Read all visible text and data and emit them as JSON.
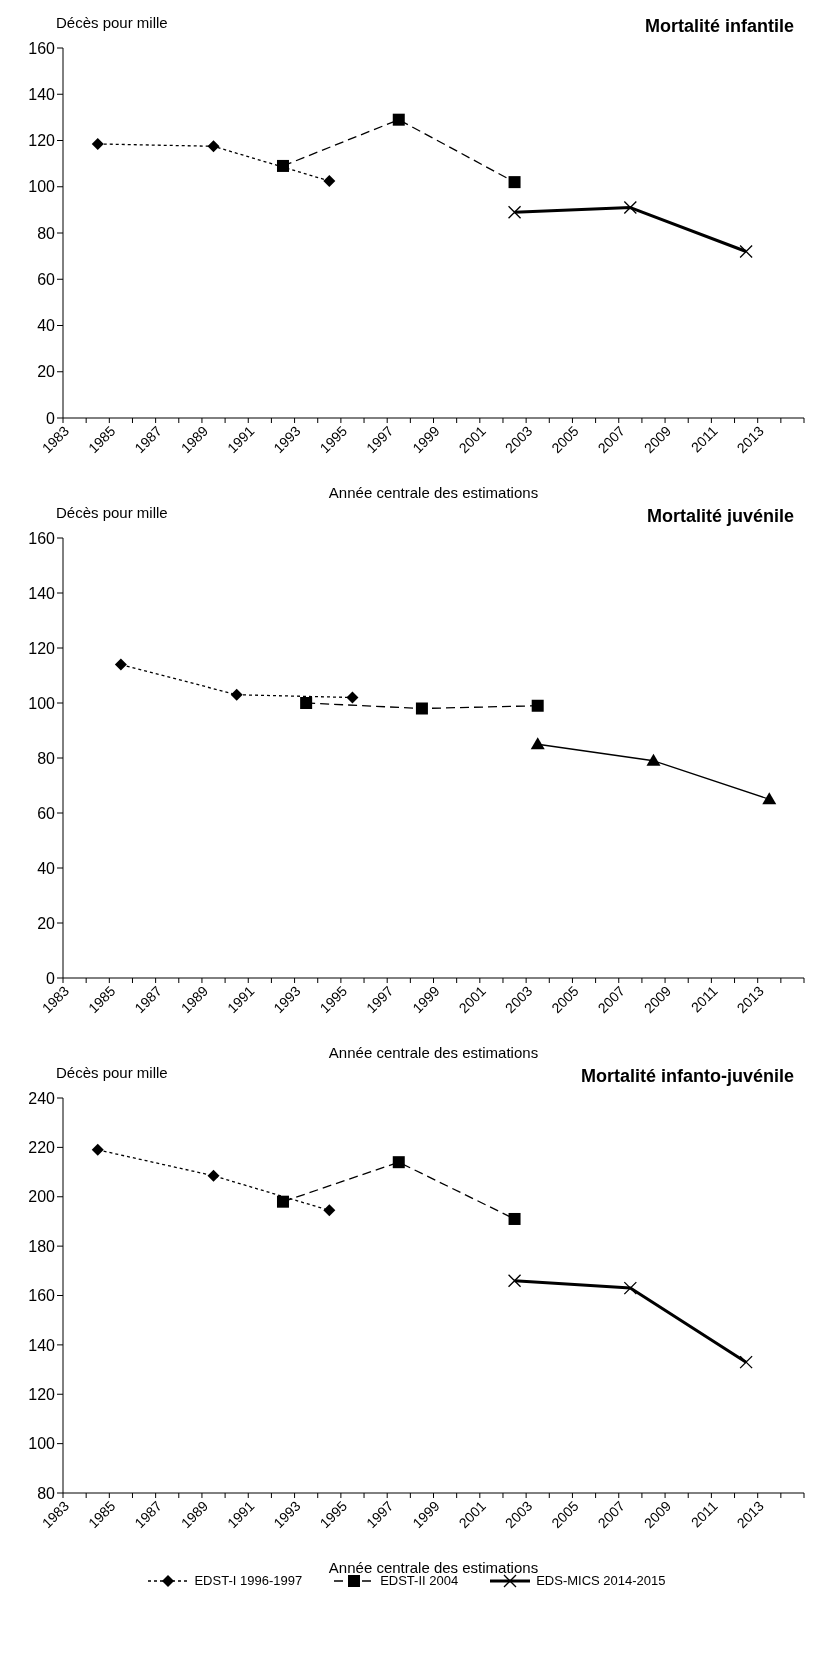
{
  "chart_data": [
    {
      "type": "line",
      "title": "Mortalité infantile",
      "ylabel": "Décès pour mille",
      "xlabel": "Année centrale des estimations",
      "xlim": [
        1983,
        2015
      ],
      "xticks": [
        1983,
        {
          "value": 1984,
          "label": null
        },
        1985,
        {
          "value": 1986,
          "label": null
        },
        1987,
        {
          "value": 1988,
          "label": null
        },
        1989,
        {
          "value": 1990,
          "label": null
        },
        1991,
        {
          "value": 1992,
          "label": null
        },
        1993,
        {
          "value": 1994,
          "label": null
        },
        1995,
        {
          "value": 1996,
          "label": null
        },
        1997,
        {
          "value": 1998,
          "label": null
        },
        1999,
        {
          "value": 2000,
          "label": null
        },
        2001,
        {
          "value": 2002,
          "label": null
        },
        2003,
        {
          "value": 2004,
          "label": null
        },
        2005,
        {
          "value": 2006,
          "label": null
        },
        2007,
        {
          "value": 2008,
          "label": null
        },
        2009,
        {
          "value": 2010,
          "label": null
        },
        2011,
        {
          "value": 2012,
          "label": null
        },
        2013,
        {
          "value": 2014,
          "label": null
        },
        {
          "value": 2015,
          "label": null
        }
      ],
      "ylim": [
        0,
        160
      ],
      "yticks": [
        0,
        20,
        40,
        60,
        80,
        100,
        120,
        140,
        160
      ],
      "series": [
        {
          "color": "#000000",
          "marker": "diamond",
          "line_style": "dotted",
          "x": [
            1984.5,
            1989.5,
            1994.5
          ],
          "values": [
            118.5,
            117.5,
            102.5
          ]
        },
        {
          "color": "#000000",
          "marker": "square",
          "line_style": "dashed",
          "x": [
            1992.5,
            1997.5,
            2002.5
          ],
          "values": [
            109,
            129,
            102
          ]
        },
        {
          "color": "#000000",
          "marker": "cross",
          "line_style": "solid",
          "x": [
            2002.5,
            2007.5,
            2012.5
          ],
          "values": [
            89,
            91,
            72
          ]
        }
      ]
    },
    {
      "type": "line",
      "title": "Mortalité juvénile",
      "ylabel": "Décès pour mille",
      "xlabel": "Année centrale des estimations",
      "xlim": [
        1983,
        2015
      ],
      "xticks": [
        1983,
        {
          "value": 1984,
          "label": null
        },
        1985,
        {
          "value": 1986,
          "label": null
        },
        1987,
        {
          "value": 1988,
          "label": null
        },
        1989,
        {
          "value": 1990,
          "label": null
        },
        1991,
        {
          "value": 1992,
          "label": null
        },
        1993,
        {
          "value": 1994,
          "label": null
        },
        1995,
        {
          "value": 1996,
          "label": null
        },
        1997,
        {
          "value": 1998,
          "label": null
        },
        1999,
        {
          "value": 2000,
          "label": null
        },
        2001,
        {
          "value": 2002,
          "label": null
        },
        2003,
        {
          "value": 2004,
          "label": null
        },
        2005,
        {
          "value": 2006,
          "label": null
        },
        2007,
        {
          "value": 2008,
          "label": null
        },
        2009,
        {
          "value": 2010,
          "label": null
        },
        2011,
        {
          "value": 2012,
          "label": null
        },
        2013,
        {
          "value": 2014,
          "label": null
        },
        {
          "value": 2015,
          "label": null
        }
      ],
      "ylim": [
        0,
        160
      ],
      "yticks": [
        0,
        20,
        40,
        60,
        80,
        100,
        120,
        140,
        160
      ],
      "series": [
        {
          "color": "#000000",
          "marker": "diamond",
          "line_style": "dotted",
          "x": [
            1985.5,
            1990.5,
            1995.5
          ],
          "values": [
            114,
            103,
            102
          ]
        },
        {
          "color": "#000000",
          "marker": "square",
          "line_style": "dashed",
          "x": [
            1993.5,
            1998.5,
            2003.5
          ],
          "values": [
            100,
            98,
            99
          ]
        },
        {
          "color": "#000000",
          "marker": "triangle",
          "line_style": "solid",
          "x": [
            2003.5,
            2008.5,
            2013.5
          ],
          "values": [
            85,
            79,
            65
          ]
        }
      ]
    },
    {
      "type": "line",
      "title": "Mortalité infanto-juvénile",
      "ylabel": "Décès pour mille",
      "xlabel": "Année centrale des estimations",
      "xlim": [
        1983,
        2015
      ],
      "xticks": [
        1983,
        {
          "value": 1984,
          "label": null
        },
        1985,
        {
          "value": 1986,
          "label": null
        },
        1987,
        {
          "value": 1988,
          "label": null
        },
        1989,
        {
          "value": 1990,
          "label": null
        },
        1991,
        {
          "value": 1992,
          "label": null
        },
        1993,
        {
          "value": 1994,
          "label": null
        },
        1995,
        {
          "value": 1996,
          "label": null
        },
        1997,
        {
          "value": 1998,
          "label": null
        },
        1999,
        {
          "value": 2000,
          "label": null
        },
        2001,
        {
          "value": 2002,
          "label": null
        },
        2003,
        {
          "value": 2004,
          "label": null
        },
        2005,
        {
          "value": 2006,
          "label": null
        },
        2007,
        {
          "value": 2008,
          "label": null
        },
        2009,
        {
          "value": 2010,
          "label": null
        },
        2011,
        {
          "value": 2012,
          "label": null
        },
        2013,
        {
          "value": 2014,
          "label": null
        },
        {
          "value": 2015,
          "label": null
        }
      ],
      "ylim": [
        80,
        240
      ],
      "yticks": [
        80,
        100,
        120,
        140,
        160,
        180,
        200,
        220,
        240
      ],
      "legend": "bottom",
      "series": [
        {
          "name": "EDST-I 1996-1997",
          "color": "#000000",
          "marker": "diamond",
          "line_style": "dotted",
          "x": [
            1984.5,
            1989.5,
            1994.5
          ],
          "values": [
            219,
            208.5,
            194.5
          ]
        },
        {
          "name": "EDST-II 2004",
          "color": "#000000",
          "marker": "square",
          "line_style": "dashed",
          "x": [
            1992.5,
            1997.5,
            2002.5
          ],
          "values": [
            198,
            214,
            191
          ]
        },
        {
          "name": "EDS-MICS 2014-2015",
          "color": "#000000",
          "marker": "cross",
          "line_style": "solid",
          "x": [
            2002.5,
            2007.5,
            2012.5
          ],
          "values": [
            166,
            163,
            133
          ]
        }
      ]
    }
  ]
}
